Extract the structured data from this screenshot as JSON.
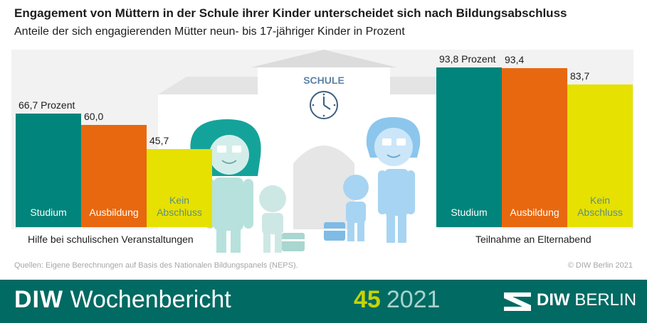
{
  "title": "Engagement von Müttern in der Schule ihrer Kinder unterscheidet sich nach Bildungsabschluss",
  "subtitle": "Anteile der sich engagierenden Mütter neun- bis 17-jähriger Kinder in Prozent",
  "illustration": {
    "school_sign": "SCHULE"
  },
  "chart_data": [
    {
      "type": "bar",
      "caption": "Hilfe bei schulischen Veranstaltungen",
      "categories": [
        "Studium",
        "Ausbildung",
        "Kein\nAbschluss"
      ],
      "values": [
        66.7,
        60.0,
        45.7
      ],
      "value_labels": [
        "66,7 Prozent",
        "60,0",
        "45,7"
      ],
      "colors": [
        "#00847b",
        "#e8680f",
        "#e6e100"
      ],
      "ylim": [
        0,
        100
      ]
    },
    {
      "type": "bar",
      "caption": "Teilnahme an Elternabend",
      "categories": [
        "Studium",
        "Ausbildung",
        "Kein\nAbschluss"
      ],
      "values": [
        93.8,
        93.4,
        83.7
      ],
      "value_labels": [
        "93,8 Prozent",
        "93,4",
        "83,7"
      ],
      "colors": [
        "#00847b",
        "#e8680f",
        "#e6e100"
      ],
      "ylim": [
        0,
        100
      ]
    }
  ],
  "label_colors": [
    "#ffffff",
    "#ffffff",
    "#5b8f89"
  ],
  "source": "Quellen: Eigene Berechnungen auf Basis des Nationalen Bildungspanels (NEPS).",
  "copyright": "© DIW Berlin 2021",
  "footer": {
    "brand_bold": "DIW",
    "brand_light": "Wochenbericht",
    "issue_number": "45",
    "issue_year": "2021",
    "logo_bold": "DIW",
    "logo_light": "BERLIN"
  }
}
